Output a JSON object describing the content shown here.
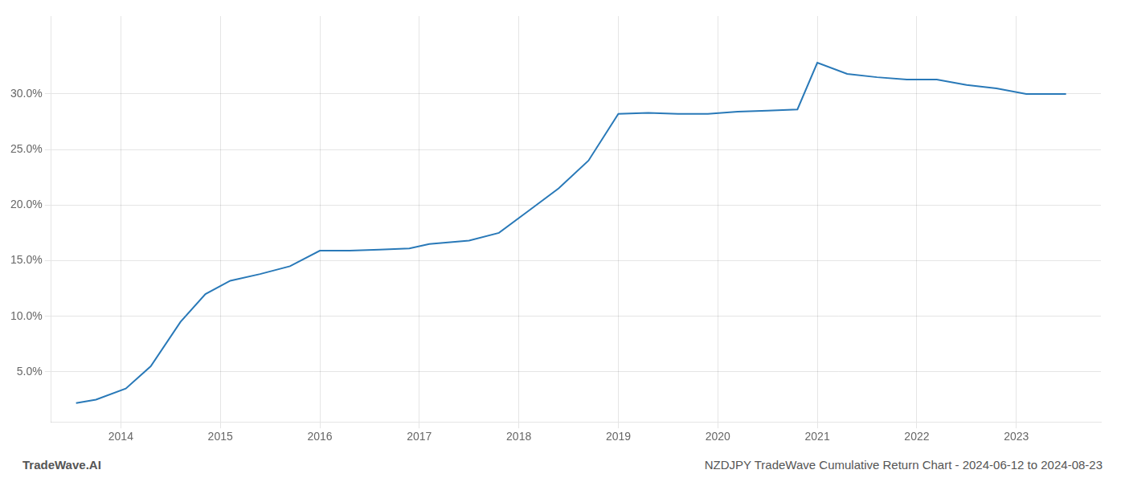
{
  "chart_data": {
    "type": "line",
    "x": [
      2013.55,
      2013.75,
      2014.05,
      2014.3,
      2014.6,
      2014.85,
      2015.1,
      2015.4,
      2015.7,
      2016.0,
      2016.3,
      2016.6,
      2016.9,
      2017.1,
      2017.5,
      2017.8,
      2018.1,
      2018.4,
      2018.7,
      2019.0,
      2019.3,
      2019.6,
      2019.9,
      2020.2,
      2020.5,
      2020.8,
      2021.0,
      2021.3,
      2021.6,
      2021.9,
      2022.2,
      2022.5,
      2022.8,
      2023.1,
      2023.5
    ],
    "values": [
      2.2,
      2.5,
      3.5,
      5.5,
      9.5,
      12.0,
      13.2,
      13.8,
      14.5,
      15.9,
      15.9,
      16.0,
      16.1,
      16.5,
      16.8,
      17.5,
      19.5,
      21.5,
      24.0,
      28.2,
      28.3,
      28.2,
      28.2,
      28.4,
      28.5,
      28.6,
      32.8,
      31.8,
      31.5,
      31.3,
      31.3,
      30.8,
      30.5,
      30.0,
      30.0
    ],
    "color": "#2979b8",
    "xlim": [
      2013.3,
      2023.85
    ],
    "xticks": [
      2014,
      2015,
      2016,
      2017,
      2018,
      2019,
      2020,
      2021,
      2022,
      2023
    ],
    "ylim": [
      0.5,
      37.0
    ],
    "yticks": [
      {
        "value": 5.0,
        "label": "5.0%"
      },
      {
        "value": 10.0,
        "label": "10.0%"
      },
      {
        "value": 15.0,
        "label": "15.0%"
      },
      {
        "value": 20.0,
        "label": "20.0%"
      },
      {
        "value": 25.0,
        "label": "25.0%"
      },
      {
        "value": 30.0,
        "label": "30.0%"
      }
    ],
    "grid": true,
    "annotations": [
      "TradeWave.AI",
      "NZDJPY TradeWave Cumulative Return Chart - 2024-06-12 to 2024-08-23"
    ]
  }
}
